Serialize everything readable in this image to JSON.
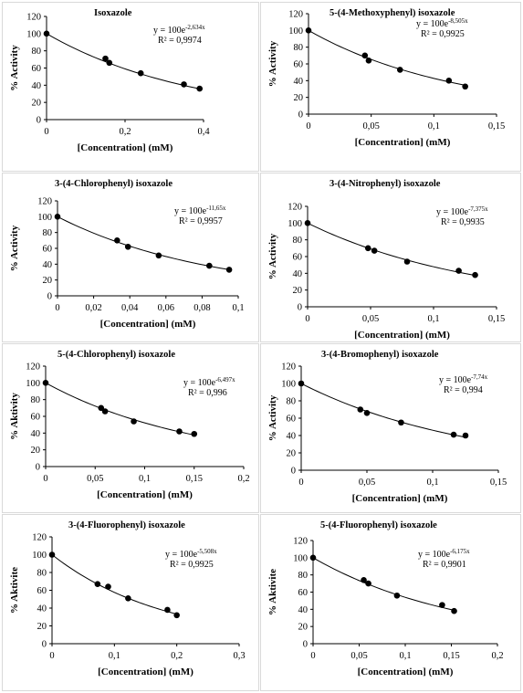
{
  "chart_data": [
    {
      "type": "scatter",
      "title": "Isoxazole",
      "xlabel": "[Concentration] (mM)",
      "ylabel": "% Activity",
      "xlim": [
        0,
        0.4
      ],
      "xstep": 0.2,
      "ylim": [
        0,
        120
      ],
      "ystep": 20,
      "x_ticks": [
        "0",
        "0,2",
        "0,4"
      ],
      "y_ticks": [
        "0",
        "20",
        "40",
        "60",
        "80",
        "100",
        "120"
      ],
      "x": [
        0,
        0.15,
        0.16,
        0.24,
        0.35,
        0.39
      ],
      "y": [
        100,
        71,
        66,
        54,
        41,
        36
      ],
      "trendline": {
        "type": "exponential",
        "a": 100,
        "b": -2.634
      },
      "equation_base": "y = 100e",
      "equation_exp": "-2,634x",
      "r2_label": "R² = 0,9974",
      "grid": false,
      "legend": "none",
      "marker_color": "#000000"
    },
    {
      "type": "scatter",
      "title": "5-(4-Methoxyphenyl) isoxazole",
      "xlabel": "[Concentration] (mM)",
      "ylabel": "% Activity",
      "xlim": [
        0,
        0.15
      ],
      "xstep": 0.05,
      "ylim": [
        0,
        120
      ],
      "ystep": 20,
      "x_ticks": [
        "0",
        "0,05",
        "0,1",
        "0,15"
      ],
      "y_ticks": [
        "0",
        "20",
        "40",
        "60",
        "80",
        "100",
        "120"
      ],
      "x": [
        0,
        0.045,
        0.048,
        0.073,
        0.112,
        0.125
      ],
      "y": [
        100,
        70,
        64,
        53,
        40,
        33
      ],
      "trendline": {
        "type": "exponential",
        "a": 100,
        "b": -8.505
      },
      "equation_base": "y = 100e",
      "equation_exp": "-8,505x",
      "r2_label": "R² = 0,9925",
      "grid": false,
      "legend": "none",
      "marker_color": "#000000"
    },
    {
      "type": "scatter",
      "title": "3-(4-Chlorophenyl) isoxazole",
      "xlabel": "[Concentration] (mM)",
      "ylabel": "% Activity",
      "xlim": [
        0,
        0.1
      ],
      "xstep": 0.02,
      "ylim": [
        0,
        120
      ],
      "ystep": 20,
      "x_ticks": [
        "0",
        "0,02",
        "0,04",
        "0,06",
        "0,08",
        "0,1"
      ],
      "y_ticks": [
        "0",
        "20",
        "40",
        "60",
        "80",
        "100",
        "120"
      ],
      "x": [
        0,
        0.033,
        0.039,
        0.056,
        0.084,
        0.095
      ],
      "y": [
        100,
        70,
        62,
        51,
        38,
        33
      ],
      "trendline": {
        "type": "exponential",
        "a": 100,
        "b": -11.65
      },
      "equation_base": "y = 100e",
      "equation_exp": "-11,65x",
      "r2_label": "R² = 0,9957",
      "grid": false,
      "legend": "none",
      "marker_color": "#000000"
    },
    {
      "type": "scatter",
      "title": "3-(4-Nitrophenyl) isoxazole",
      "xlabel": "[Concentration] (mM)",
      "ylabel": "% Activity",
      "xlim": [
        0,
        0.15
      ],
      "xstep": 0.05,
      "ylim": [
        0,
        120
      ],
      "ystep": 20,
      "x_ticks": [
        "0",
        "0,05",
        "0,1",
        "0,15"
      ],
      "y_ticks": [
        "0",
        "20",
        "40",
        "60",
        "80",
        "100",
        "120"
      ],
      "x": [
        0,
        0.048,
        0.053,
        0.079,
        0.12,
        0.133
      ],
      "y": [
        100,
        70,
        67,
        54,
        43,
        38
      ],
      "trendline": {
        "type": "exponential",
        "a": 100,
        "b": -7.375
      },
      "equation_base": "y = 100e",
      "equation_exp": "-7,375x",
      "r2_label": "R² = 0,9935",
      "grid": false,
      "legend": "none",
      "marker_color": "#000000"
    },
    {
      "type": "scatter",
      "title": "5-(4-Chlorophenyl) isoxazole",
      "xlabel": "[Concentration] (mM)",
      "ylabel": "% Aktivity",
      "xlim": [
        0,
        0.2
      ],
      "xstep": 0.05,
      "ylim": [
        0,
        120
      ],
      "ystep": 20,
      "x_ticks": [
        "0",
        "0,05",
        "0,1",
        "0,15",
        "0,2"
      ],
      "y_ticks": [
        "0",
        "20",
        "40",
        "60",
        "80",
        "100",
        "120"
      ],
      "x": [
        0,
        0.056,
        0.06,
        0.089,
        0.135,
        0.15
      ],
      "y": [
        100,
        70,
        66,
        54,
        42,
        39
      ],
      "trendline": {
        "type": "exponential",
        "a": 100,
        "b": -6.497
      },
      "equation_base": "y = 100e",
      "equation_exp": "-6,497x",
      "r2_label": "R² = 0,996",
      "grid": false,
      "legend": "none",
      "marker_color": "#000000"
    },
    {
      "type": "scatter",
      "title": "3-(4-Bromophenyl) isoxazole",
      "xlabel": "[Concentration] (mM)",
      "ylabel": "% Activity",
      "xlim": [
        0,
        0.15
      ],
      "xstep": 0.05,
      "ylim": [
        0,
        120
      ],
      "ystep": 20,
      "x_ticks": [
        "0",
        "0,05",
        "0,1",
        "0,15"
      ],
      "y_ticks": [
        "0",
        "20",
        "40",
        "60",
        "80",
        "100",
        "120"
      ],
      "x": [
        0,
        0.045,
        0.05,
        0.076,
        0.116,
        0.125
      ],
      "y": [
        100,
        70,
        66,
        55,
        41,
        40
      ],
      "trendline": {
        "type": "exponential",
        "a": 100,
        "b": -7.74
      },
      "equation_base": "y = 100e",
      "equation_exp": "-7,74x",
      "r2_label": "R² = 0,994",
      "grid": false,
      "legend": "none",
      "marker_color": "#000000"
    },
    {
      "type": "scatter",
      "title": "3-(4-Fluorophenyl) isoxazole",
      "xlabel": "[Concentration] (mM)",
      "ylabel": "% Aktivite",
      "xlim": [
        0,
        0.3
      ],
      "xstep": 0.1,
      "ylim": [
        0,
        120
      ],
      "ystep": 20,
      "x_ticks": [
        "0",
        "0,1",
        "0,2",
        "0,3"
      ],
      "y_ticks": [
        "0",
        "20",
        "40",
        "60",
        "80",
        "100",
        "120"
      ],
      "x": [
        0,
        0.073,
        0.09,
        0.122,
        0.185,
        0.2
      ],
      "y": [
        100,
        67,
        64,
        51,
        38,
        32
      ],
      "trendline": {
        "type": "exponential",
        "a": 100,
        "b": -5.508
      },
      "equation_base": "y = 100e",
      "equation_exp": "-5,508x",
      "r2_label": "R² = 0,9925",
      "grid": false,
      "legend": "none",
      "marker_color": "#000000"
    },
    {
      "type": "scatter",
      "title": "5-(4-Fluorophenyl) isoxazole",
      "xlabel": "[Concentration] (mM)",
      "ylabel": "% Aktivite",
      "xlim": [
        0,
        0.2
      ],
      "xstep": 0.05,
      "ylim": [
        0,
        120
      ],
      "ystep": 20,
      "x_ticks": [
        "0",
        "0,05",
        "0,1",
        "0,15",
        "0,2"
      ],
      "y_ticks": [
        "0",
        "20",
        "40",
        "60",
        "80",
        "100",
        "120"
      ],
      "x": [
        0,
        0.055,
        0.06,
        0.091,
        0.14,
        0.153
      ],
      "y": [
        100,
        74,
        70,
        56,
        45,
        38
      ],
      "trendline": {
        "type": "exponential",
        "a": 100,
        "b": -6.175
      },
      "equation_base": "y = 100e",
      "equation_exp": "-6,175x",
      "r2_label": "R² = 0,9901",
      "grid": false,
      "legend": "none",
      "marker_color": "#000000"
    }
  ]
}
